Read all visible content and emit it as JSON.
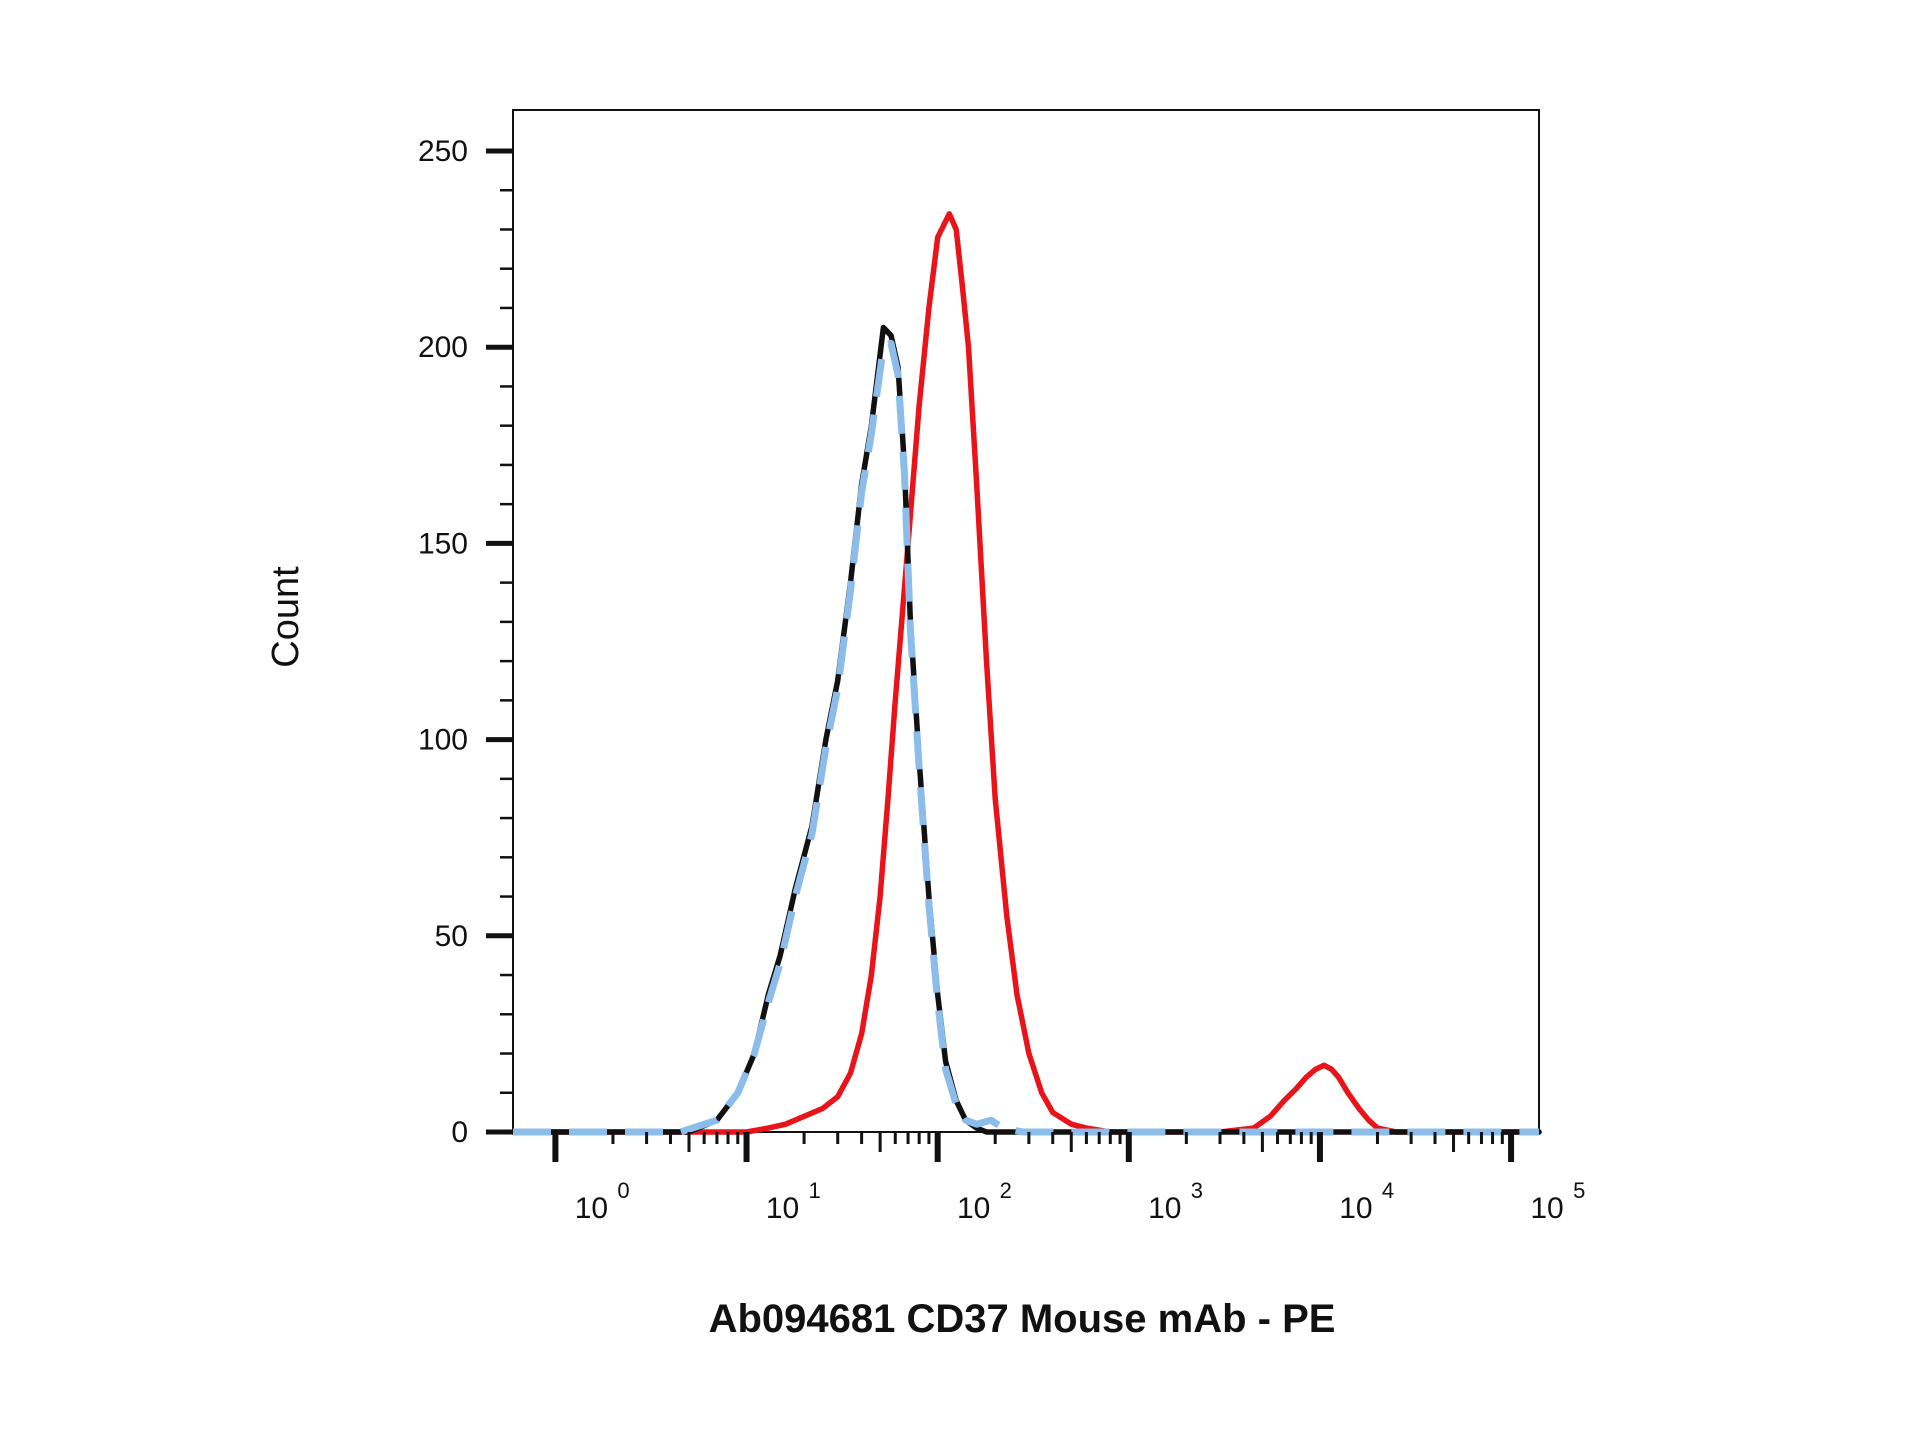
{
  "chart_data": {
    "type": "line",
    "title": "",
    "xlabel": "Ab094681 CD37 Mouse mAb - PE",
    "ylabel": "Count",
    "x_scale": "log",
    "xlim": [
      0.6,
      140000
    ],
    "ylim": [
      0,
      250
    ],
    "grid": false,
    "legend": "none",
    "x_ticks": [
      {
        "value": 1,
        "base": "10",
        "exp": "0"
      },
      {
        "value": 10,
        "base": "10",
        "exp": "1"
      },
      {
        "value": 100,
        "base": "10",
        "exp": "2"
      },
      {
        "value": 1000,
        "base": "10",
        "exp": "3"
      },
      {
        "value": 10000,
        "base": "10",
        "exp": "4"
      },
      {
        "value": 100000,
        "base": "10",
        "exp": "5"
      }
    ],
    "y_ticks": [
      {
        "value": 0,
        "label": "0"
      },
      {
        "value": 50,
        "label": "50"
      },
      {
        "value": 100,
        "label": "100"
      },
      {
        "value": 150,
        "label": "150"
      },
      {
        "value": 200,
        "label": "200"
      },
      {
        "value": 250,
        "label": "250"
      }
    ],
    "series": [
      {
        "color": "#e8141a",
        "style": "solid",
        "points": [
          [
            0.6,
            0
          ],
          [
            10,
            0
          ],
          [
            13,
            1
          ],
          [
            16,
            2
          ],
          [
            20,
            4
          ],
          [
            25,
            6
          ],
          [
            30,
            9
          ],
          [
            35,
            15
          ],
          [
            40,
            25
          ],
          [
            45,
            40
          ],
          [
            50,
            60
          ],
          [
            55,
            85
          ],
          [
            60,
            110
          ],
          [
            70,
            150
          ],
          [
            80,
            185
          ],
          [
            90,
            210
          ],
          [
            100,
            228
          ],
          [
            115,
            234
          ],
          [
            125,
            230
          ],
          [
            135,
            215
          ],
          [
            145,
            200
          ],
          [
            160,
            165
          ],
          [
            180,
            120
          ],
          [
            200,
            85
          ],
          [
            230,
            55
          ],
          [
            260,
            35
          ],
          [
            300,
            20
          ],
          [
            350,
            10
          ],
          [
            400,
            5
          ],
          [
            500,
            2
          ],
          [
            600,
            1
          ],
          [
            800,
            0
          ],
          [
            3000,
            0
          ],
          [
            4500,
            1
          ],
          [
            5500,
            4
          ],
          [
            6500,
            8
          ],
          [
            7500,
            11
          ],
          [
            8500,
            14
          ],
          [
            9500,
            16
          ],
          [
            10500,
            17
          ],
          [
            11500,
            16
          ],
          [
            12500,
            14
          ],
          [
            14000,
            10
          ],
          [
            16000,
            6
          ],
          [
            18000,
            3
          ],
          [
            20000,
            1
          ],
          [
            25000,
            0
          ],
          [
            140000,
            0
          ]
        ]
      },
      {
        "color": "#111111",
        "style": "solid",
        "points": [
          [
            0.6,
            0
          ],
          [
            5,
            0
          ],
          [
            7,
            3
          ],
          [
            9,
            10
          ],
          [
            11,
            20
          ],
          [
            13,
            35
          ],
          [
            15,
            45
          ],
          [
            18,
            62
          ],
          [
            22,
            78
          ],
          [
            26,
            100
          ],
          [
            30,
            115
          ],
          [
            35,
            140
          ],
          [
            40,
            165
          ],
          [
            45,
            180
          ],
          [
            52,
            205
          ],
          [
            57,
            203
          ],
          [
            62,
            195
          ],
          [
            67,
            170
          ],
          [
            72,
            130
          ],
          [
            80,
            95
          ],
          [
            90,
            60
          ],
          [
            100,
            35
          ],
          [
            110,
            18
          ],
          [
            125,
            8
          ],
          [
            140,
            3
          ],
          [
            160,
            1
          ],
          [
            180,
            0
          ],
          [
            140000,
            0
          ]
        ]
      },
      {
        "color": "#8cbdea",
        "style": "dashed",
        "points": [
          [
            0.6,
            0
          ],
          [
            4.5,
            0
          ],
          [
            7,
            3
          ],
          [
            9,
            10
          ],
          [
            11,
            20
          ],
          [
            13,
            33
          ],
          [
            15,
            43
          ],
          [
            18,
            60
          ],
          [
            22,
            76
          ],
          [
            26,
            98
          ],
          [
            30,
            113
          ],
          [
            35,
            138
          ],
          [
            40,
            163
          ],
          [
            45,
            178
          ],
          [
            52,
            200
          ],
          [
            57,
            201
          ],
          [
            62,
            193
          ],
          [
            67,
            168
          ],
          [
            72,
            128
          ],
          [
            80,
            93
          ],
          [
            90,
            58
          ],
          [
            100,
            33
          ],
          [
            110,
            16
          ],
          [
            125,
            7
          ],
          [
            140,
            3
          ],
          [
            160,
            2
          ],
          [
            190,
            3
          ],
          [
            220,
            1
          ],
          [
            280,
            0
          ],
          [
            140000,
            0
          ]
        ]
      }
    ]
  }
}
